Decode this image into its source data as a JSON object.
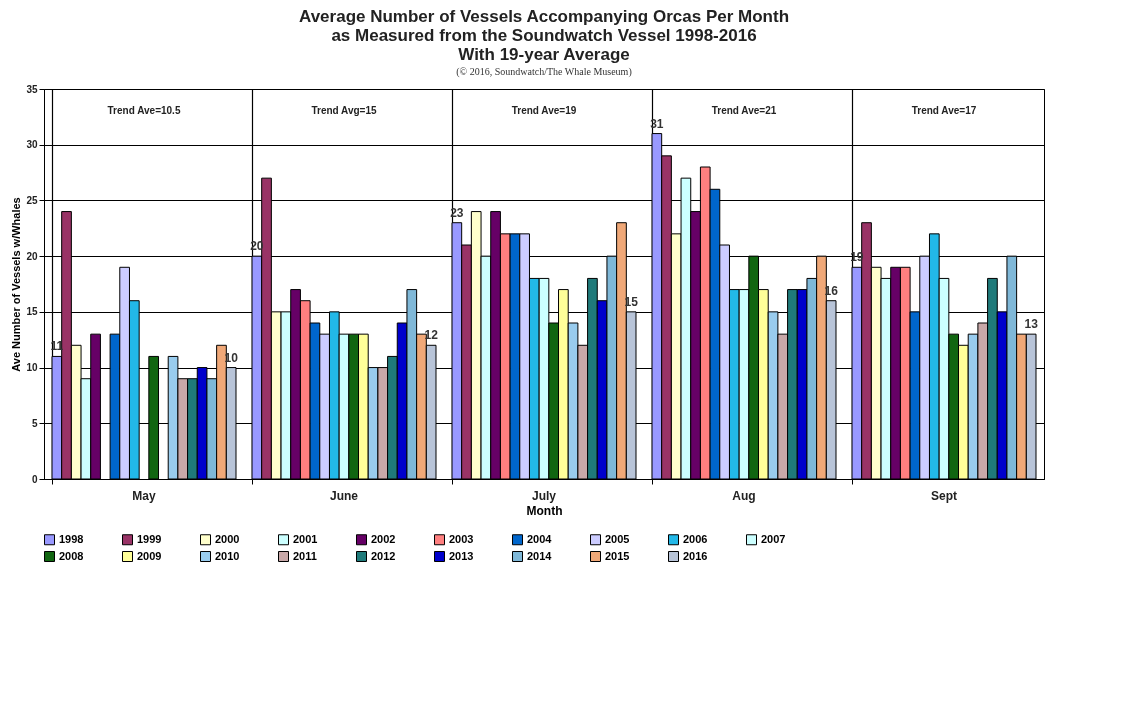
{
  "chart_data": {
    "type": "bar",
    "title": "Average Number of Vessels Accompanying Orcas Per Month\nas Measured from the Soundwatch Vessel 1998-2016\nWith 19-year Average",
    "subtitle": "(© 2016, Soundwatch/The Whale Museum)",
    "xlabel": "Month",
    "ylabel": "Ave Number of Vessels w/Whales",
    "categories": [
      "May",
      "June",
      "July",
      "Aug",
      "Sept"
    ],
    "annotations": [
      "Trend Ave=10.5",
      "Trend Avg=15",
      "Trend Ave=19",
      "Trend Ave=21",
      "Trend Ave=17"
    ],
    "ylim": [
      0,
      35
    ],
    "yticks": [
      0,
      5,
      10,
      15,
      20,
      25,
      30,
      35
    ],
    "grid": true,
    "legend": "bottom",
    "series": [
      {
        "name": "1998",
        "color": "#9999ff",
        "values": [
          11,
          20,
          23,
          31,
          19
        ],
        "value_labels": [
          "11",
          "20",
          "23",
          "31",
          "19"
        ]
      },
      {
        "name": "1999",
        "color": "#993366",
        "values": [
          24,
          27,
          21,
          29,
          23
        ]
      },
      {
        "name": "2000",
        "color": "#ffffcc",
        "values": [
          12,
          15,
          24,
          22,
          19
        ]
      },
      {
        "name": "2001",
        "color": "#ccffff",
        "values": [
          9,
          15,
          20,
          27,
          18
        ]
      },
      {
        "name": "2002",
        "color": "#660066",
        "values": [
          13,
          17,
          24,
          24,
          19
        ]
      },
      {
        "name": "2003",
        "color": "#ff8080",
        "values": [
          null,
          16,
          22,
          28,
          19
        ]
      },
      {
        "name": "2004",
        "color": "#0066cc",
        "values": [
          13,
          14,
          22,
          26,
          15
        ]
      },
      {
        "name": "2005",
        "color": "#ccccff",
        "values": [
          19,
          13,
          22,
          21,
          20
        ]
      },
      {
        "name": "2006",
        "color": "#22b8e8",
        "values": [
          16,
          15,
          18,
          17,
          22
        ]
      },
      {
        "name": "2007",
        "color": "#ccffff",
        "values": [
          null,
          13,
          18,
          17,
          18
        ]
      },
      {
        "name": "2008",
        "color": "#116611",
        "values": [
          11,
          13,
          14,
          20,
          13
        ]
      },
      {
        "name": "2009",
        "color": "#ffff99",
        "values": [
          null,
          13,
          17,
          17,
          12
        ]
      },
      {
        "name": "2010",
        "color": "#99ccee",
        "values": [
          11,
          10,
          14,
          15,
          13
        ]
      },
      {
        "name": "2011",
        "color": "#c8a8a8",
        "values": [
          9,
          10,
          12,
          13,
          14
        ]
      },
      {
        "name": "2012",
        "color": "#1f7a7a",
        "values": [
          9,
          11,
          18,
          17,
          18
        ]
      },
      {
        "name": "2013",
        "color": "#0000cc",
        "values": [
          10,
          14,
          16,
          17,
          15
        ]
      },
      {
        "name": "2014",
        "color": "#7fb8d8",
        "values": [
          9,
          17,
          20,
          18,
          20
        ]
      },
      {
        "name": "2015",
        "color": "#f0a878",
        "values": [
          12,
          13,
          23,
          20,
          13
        ]
      },
      {
        "name": "2016",
        "color": "#b8c4d8",
        "values": [
          10,
          12,
          15,
          16,
          13
        ],
        "value_labels": [
          "10",
          "12",
          "15",
          "16",
          "13"
        ]
      }
    ]
  }
}
